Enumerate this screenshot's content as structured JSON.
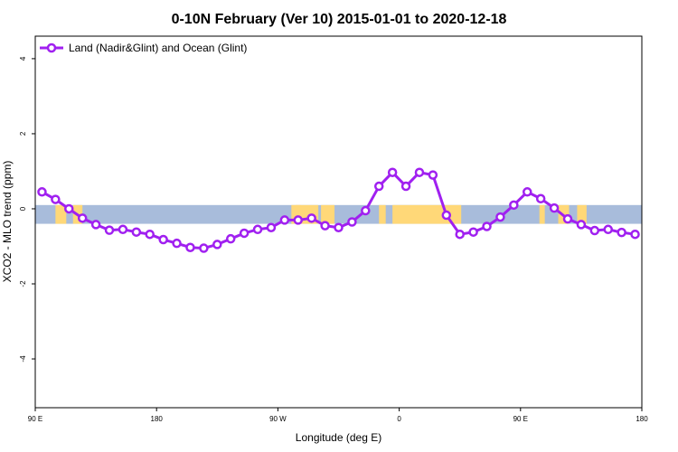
{
  "chart_data": {
    "type": "line",
    "title": "0-10N February (Ver 10)   2015-01-01 to 2020-12-18",
    "xlabel": "Longitude (deg E)",
    "ylabel": "XCO2 - MLO trend (ppm)",
    "xlim": [
      90,
      540
    ],
    "ylim": [
      -5.3,
      4.6
    ],
    "x_ticks": [
      {
        "value": 90,
        "label": "90 E"
      },
      {
        "value": 180,
        "label": "180"
      },
      {
        "value": 270,
        "label": "90 W"
      },
      {
        "value": 360,
        "label": "0"
      },
      {
        "value": 450,
        "label": "90 E"
      },
      {
        "value": 540,
        "label": "180"
      }
    ],
    "y_ticks": [
      {
        "value": -4,
        "label": "-4"
      },
      {
        "value": -2,
        "label": "-2"
      },
      {
        "value": 0,
        "label": "0"
      },
      {
        "value": 2,
        "label": "2"
      },
      {
        "value": 4,
        "label": "4"
      }
    ],
    "band": {
      "ymin": -0.4,
      "ymax": 0.1,
      "ocean_color": "#a8bcdb",
      "land_color": "#ffd878"
    },
    "land_segments": [
      {
        "x0": 105,
        "x1": 113
      },
      {
        "x0": 118,
        "x1": 125
      },
      {
        "x0": 283,
        "x1": 287
      },
      {
        "x0": 280,
        "x1": 300
      },
      {
        "x0": 302,
        "x1": 312
      },
      {
        "x0": 345,
        "x1": 350
      },
      {
        "x0": 355,
        "x1": 406
      },
      {
        "x0": 464,
        "x1": 468
      },
      {
        "x0": 478,
        "x1": 486
      },
      {
        "x0": 492,
        "x1": 499
      }
    ],
    "legend_position": "top-left",
    "series": [
      {
        "name": "Land (Nadir&Glint) and Ocean (Glint)",
        "color": "#a020f0",
        "x": [
          95,
          105,
          115,
          125,
          135,
          145,
          155,
          165,
          175,
          185,
          195,
          205,
          215,
          225,
          235,
          245,
          255,
          265,
          275,
          285,
          295,
          305,
          315,
          325,
          335,
          345,
          355,
          365,
          375,
          385,
          395,
          405,
          415,
          425,
          435,
          445,
          455,
          465,
          475,
          485,
          495,
          505,
          515,
          525,
          535
        ],
        "values": [
          0.45,
          0.25,
          0.0,
          -0.25,
          -0.42,
          -0.57,
          -0.55,
          -0.62,
          -0.68,
          -0.82,
          -0.92,
          -1.03,
          -1.05,
          -0.95,
          -0.8,
          -0.65,
          -0.55,
          -0.5,
          -0.3,
          -0.3,
          -0.25,
          -0.45,
          -0.5,
          -0.35,
          -0.05,
          0.6,
          0.97,
          0.6,
          0.97,
          0.9,
          -0.17,
          -0.68,
          -0.62,
          -0.47,
          -0.22,
          0.1,
          0.45,
          0.27,
          0.02,
          -0.27,
          -0.42,
          -0.58,
          -0.55,
          -0.63,
          -0.68
        ]
      }
    ]
  }
}
